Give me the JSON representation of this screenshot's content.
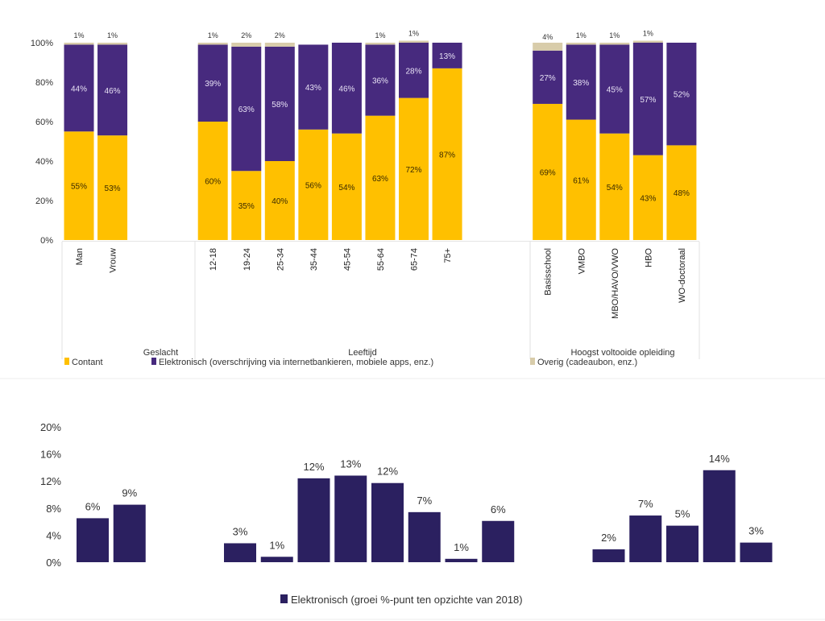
{
  "colors": {
    "contant": "#FFC000",
    "elektronisch": "#472A7E",
    "overig": "#D8CCAA",
    "growth": "#2B2060"
  },
  "chart_data": [
    {
      "type": "bar",
      "stacked": true,
      "ylim": [
        0,
        100
      ],
      "yticks": [
        "0%",
        "20%",
        "40%",
        "60%",
        "80%",
        "100%"
      ],
      "grid": false,
      "legend_position": "bottom",
      "groups": [
        {
          "label": "Geslacht",
          "categories": [
            "Man",
            "Vrouw"
          ]
        },
        {
          "label": "Leeftijd",
          "categories": [
            "12-18",
            "19-24",
            "25-34",
            "35-44",
            "45-54",
            "55-64",
            "65-74",
            "75+"
          ]
        },
        {
          "label": "Hoogst voltooide opleiding",
          "categories": [
            "Basisschool",
            "VMBO",
            "MBO/HAVO/VWO",
            "HBO",
            "WO-doctoraal"
          ]
        }
      ],
      "categories": [
        "Man",
        "Vrouw",
        "12-18",
        "19-24",
        "25-34",
        "35-44",
        "45-54",
        "55-64",
        "65-74",
        "75+",
        "Basisschool",
        "VMBO",
        "MBO/HAVO/VWO",
        "HBO",
        "WO-doctoraal"
      ],
      "series": [
        {
          "name": "Contant",
          "values": [
            55,
            53,
            60,
            35,
            40,
            56,
            54,
            63,
            72,
            87,
            69,
            61,
            54,
            43,
            48
          ],
          "labels": [
            "55%",
            "53%",
            "60%",
            "35%",
            "40%",
            "56%",
            "54%",
            "63%",
            "72%",
            "87%",
            "69%",
            "61%",
            "54%",
            "43%",
            "48%"
          ]
        },
        {
          "name": "Elektronisch (overschrijving via internetbankieren, mobiele apps, enz.)",
          "values": [
            44,
            46,
            39,
            63,
            58,
            43,
            46,
            36,
            28,
            13,
            27,
            38,
            45,
            57,
            52
          ],
          "labels": [
            "44%",
            "46%",
            "39%",
            "63%",
            "58%",
            "43%",
            "46%",
            "36%",
            "28%",
            "13%",
            "27%",
            "38%",
            "45%",
            "57%",
            "52%"
          ]
        },
        {
          "name": "Overig (cadeaubon, enz.)",
          "values": [
            1,
            1,
            1,
            2,
            2,
            0,
            0,
            1,
            1,
            0,
            4,
            1,
            1,
            1,
            0
          ],
          "labels": [
            "1%",
            "1%",
            "1%",
            "2%",
            "2%",
            "",
            "",
            "1%",
            "1%",
            "",
            "4%",
            "1%",
            "1%",
            "1%",
            ""
          ]
        }
      ]
    },
    {
      "type": "bar",
      "ylim": [
        0,
        20
      ],
      "yticks": [
        "0%",
        "4%",
        "8%",
        "12%",
        "16%",
        "20%"
      ],
      "grid": false,
      "legend_position": "bottom",
      "categories": [
        "Man",
        "Vrouw",
        "12-18",
        "19-24",
        "25-34",
        "35-44",
        "45-54",
        "55-64",
        "65-74",
        "75+",
        "Basisschool",
        "VMBO",
        "MBO/HAVO/VWO",
        "HBO",
        "WO-doctoraal"
      ],
      "series": [
        {
          "name": "Elektronisch (groei %-punt ten opzichte van 2018)",
          "values": [
            6.5,
            8.5,
            2.8,
            0.8,
            12.4,
            12.8,
            11.7,
            7.4,
            0.5,
            6.1,
            1.9,
            6.9,
            5.4,
            13.6,
            2.9
          ],
          "labels": [
            "6%",
            "9%",
            "3%",
            "1%",
            "12%",
            "13%",
            "12%",
            "7%",
            "1%",
            "6%",
            "2%",
            "7%",
            "5%",
            "14%",
            "3%"
          ]
        }
      ]
    }
  ]
}
